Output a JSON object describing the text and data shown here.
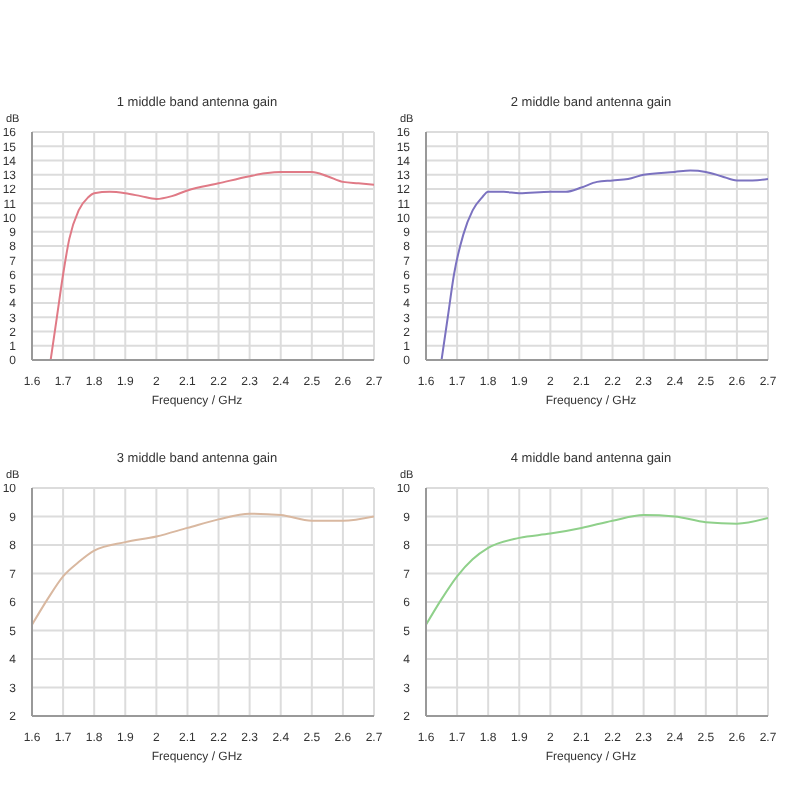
{
  "chart_data": [
    {
      "type": "line",
      "title": "1 middle band antenna gain",
      "xlabel": "Frequency / GHz",
      "ylabel": "dB",
      "xlim": [
        1.6,
        2.7
      ],
      "xticks": [
        1.6,
        1.7,
        1.8,
        1.9,
        2,
        2.1,
        2.2,
        2.3,
        2.4,
        2.5,
        2.6,
        2.7
      ],
      "ylim": [
        0,
        16
      ],
      "yticks": [
        0,
        1,
        2,
        3,
        4,
        5,
        6,
        7,
        8,
        9,
        10,
        11,
        12,
        13,
        14,
        15,
        16
      ],
      "grid": true,
      "x": [
        1.66,
        1.68,
        1.7,
        1.72,
        1.75,
        1.78,
        1.8,
        1.85,
        1.9,
        1.95,
        2.0,
        2.05,
        2.1,
        2.2,
        2.3,
        2.35,
        2.4,
        2.45,
        2.5,
        2.55,
        2.6,
        2.65,
        2.7
      ],
      "series": [
        {
          "color": "#e07a86",
          "values": [
            0,
            3,
            6,
            8.5,
            10.5,
            11.4,
            11.7,
            11.8,
            11.7,
            11.5,
            11.3,
            11.5,
            11.9,
            12.4,
            12.9,
            13.1,
            13.2,
            13.2,
            13.2,
            12.9,
            12.5,
            12.4,
            12.3
          ]
        }
      ]
    },
    {
      "type": "line",
      "title": "2 middle band antenna gain",
      "xlabel": "Frequency / GHz",
      "ylabel": "dB",
      "xlim": [
        1.6,
        2.7
      ],
      "xticks": [
        1.6,
        1.7,
        1.8,
        1.9,
        2,
        2.1,
        2.2,
        2.3,
        2.4,
        2.5,
        2.6,
        2.7
      ],
      "ylim": [
        0,
        16
      ],
      "yticks": [
        0,
        1,
        2,
        3,
        4,
        5,
        6,
        7,
        8,
        9,
        10,
        11,
        12,
        13,
        14,
        15,
        16
      ],
      "grid": true,
      "x": [
        1.65,
        1.67,
        1.69,
        1.72,
        1.75,
        1.78,
        1.8,
        1.85,
        1.9,
        2.0,
        2.05,
        2.1,
        2.15,
        2.2,
        2.25,
        2.3,
        2.4,
        2.45,
        2.5,
        2.55,
        2.6,
        2.65,
        2.7
      ],
      "series": [
        {
          "color": "#7b72c0",
          "values": [
            0,
            3,
            6,
            8.8,
            10.5,
            11.4,
            11.8,
            11.8,
            11.7,
            11.8,
            11.8,
            12.1,
            12.5,
            12.6,
            12.7,
            13.0,
            13.2,
            13.3,
            13.2,
            12.9,
            12.6,
            12.6,
            12.7
          ]
        }
      ]
    },
    {
      "type": "line",
      "title": "3 middle band antenna gain",
      "xlabel": "Frequency / GHz",
      "ylabel": "dB",
      "xlim": [
        1.6,
        2.7
      ],
      "xticks": [
        1.6,
        1.7,
        1.8,
        1.9,
        2,
        2.1,
        2.2,
        2.3,
        2.4,
        2.5,
        2.6,
        2.7
      ],
      "ylim": [
        2,
        10
      ],
      "yticks": [
        2,
        3,
        4,
        5,
        6,
        7,
        8,
        9,
        10
      ],
      "grid": true,
      "x": [
        1.6,
        1.65,
        1.7,
        1.75,
        1.8,
        1.9,
        2.0,
        2.1,
        2.2,
        2.3,
        2.4,
        2.5,
        2.6,
        2.7
      ],
      "series": [
        {
          "color": "#d9b8a0",
          "values": [
            5.2,
            6.1,
            6.9,
            7.4,
            7.8,
            8.1,
            8.3,
            8.6,
            8.9,
            9.1,
            9.05,
            8.85,
            8.85,
            9.0
          ]
        }
      ]
    },
    {
      "type": "line",
      "title": "4 middle band antenna gain",
      "xlabel": "Frequency / GHz",
      "ylabel": "dB",
      "xlim": [
        1.6,
        2.7
      ],
      "xticks": [
        1.6,
        1.7,
        1.8,
        1.9,
        2,
        2.1,
        2.2,
        2.3,
        2.4,
        2.5,
        2.6,
        2.7
      ],
      "ylim": [
        2,
        10
      ],
      "yticks": [
        2,
        3,
        4,
        5,
        6,
        7,
        8,
        9,
        10
      ],
      "grid": true,
      "x": [
        1.6,
        1.65,
        1.7,
        1.75,
        1.8,
        1.9,
        2.0,
        2.1,
        2.2,
        2.3,
        2.4,
        2.5,
        2.6,
        2.7
      ],
      "series": [
        {
          "color": "#8fd08a",
          "values": [
            5.2,
            6.1,
            6.9,
            7.5,
            7.9,
            8.25,
            8.4,
            8.6,
            8.85,
            9.05,
            9.0,
            8.8,
            8.75,
            8.95
          ]
        }
      ]
    }
  ]
}
